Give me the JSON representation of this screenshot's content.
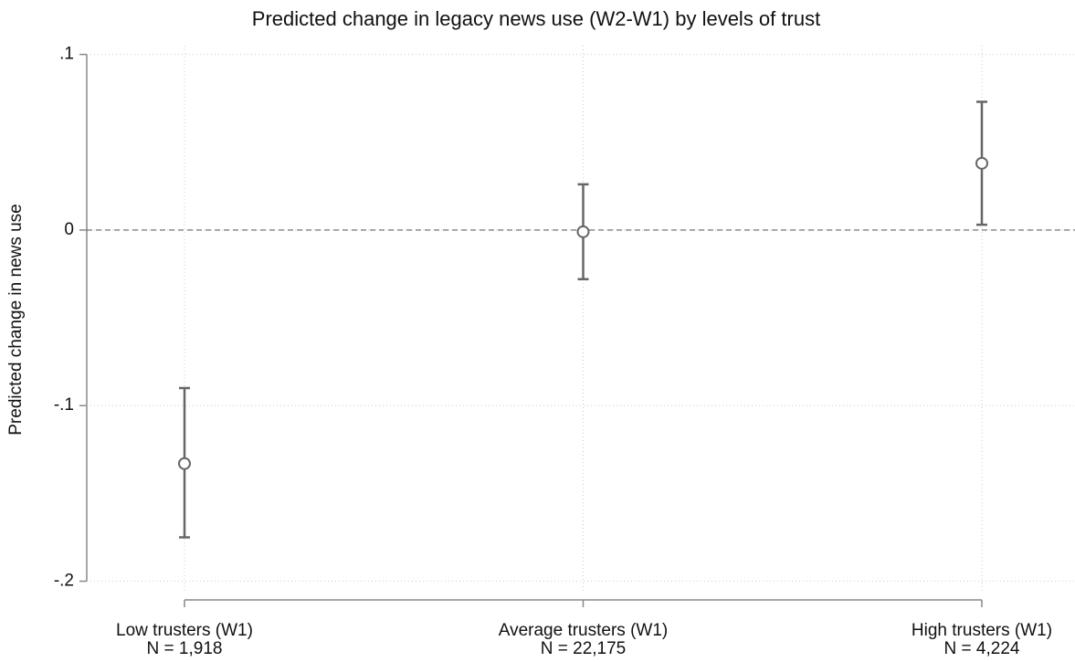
{
  "chart_data": {
    "type": "errorbar",
    "title": "Predicted change in legacy news use (W2-W1) by levels of trust",
    "ylabel": "Predicted change in news use",
    "categories": [
      "Low trusters (W1)",
      "Average trusters (W1)",
      "High trusters (W1)"
    ],
    "n_labels": [
      "N = 1,918",
      "N = 22,175",
      "N = 4,224"
    ],
    "series": [
      {
        "color": "#666666",
        "values": [
          -0.133,
          -0.001,
          0.038
        ],
        "lower": [
          -0.175,
          -0.028,
          0.003
        ],
        "upper": [
          -0.09,
          0.026,
          0.073
        ]
      }
    ],
    "ylim": [
      -0.207,
      0.105
    ],
    "yticks": [
      {
        "value": -0.2,
        "label": "-.2"
      },
      {
        "value": -0.1,
        "label": "-.1"
      },
      0,
      {
        "value": 0.1,
        "label": ".1"
      }
    ],
    "yline": 0,
    "grid": true
  }
}
